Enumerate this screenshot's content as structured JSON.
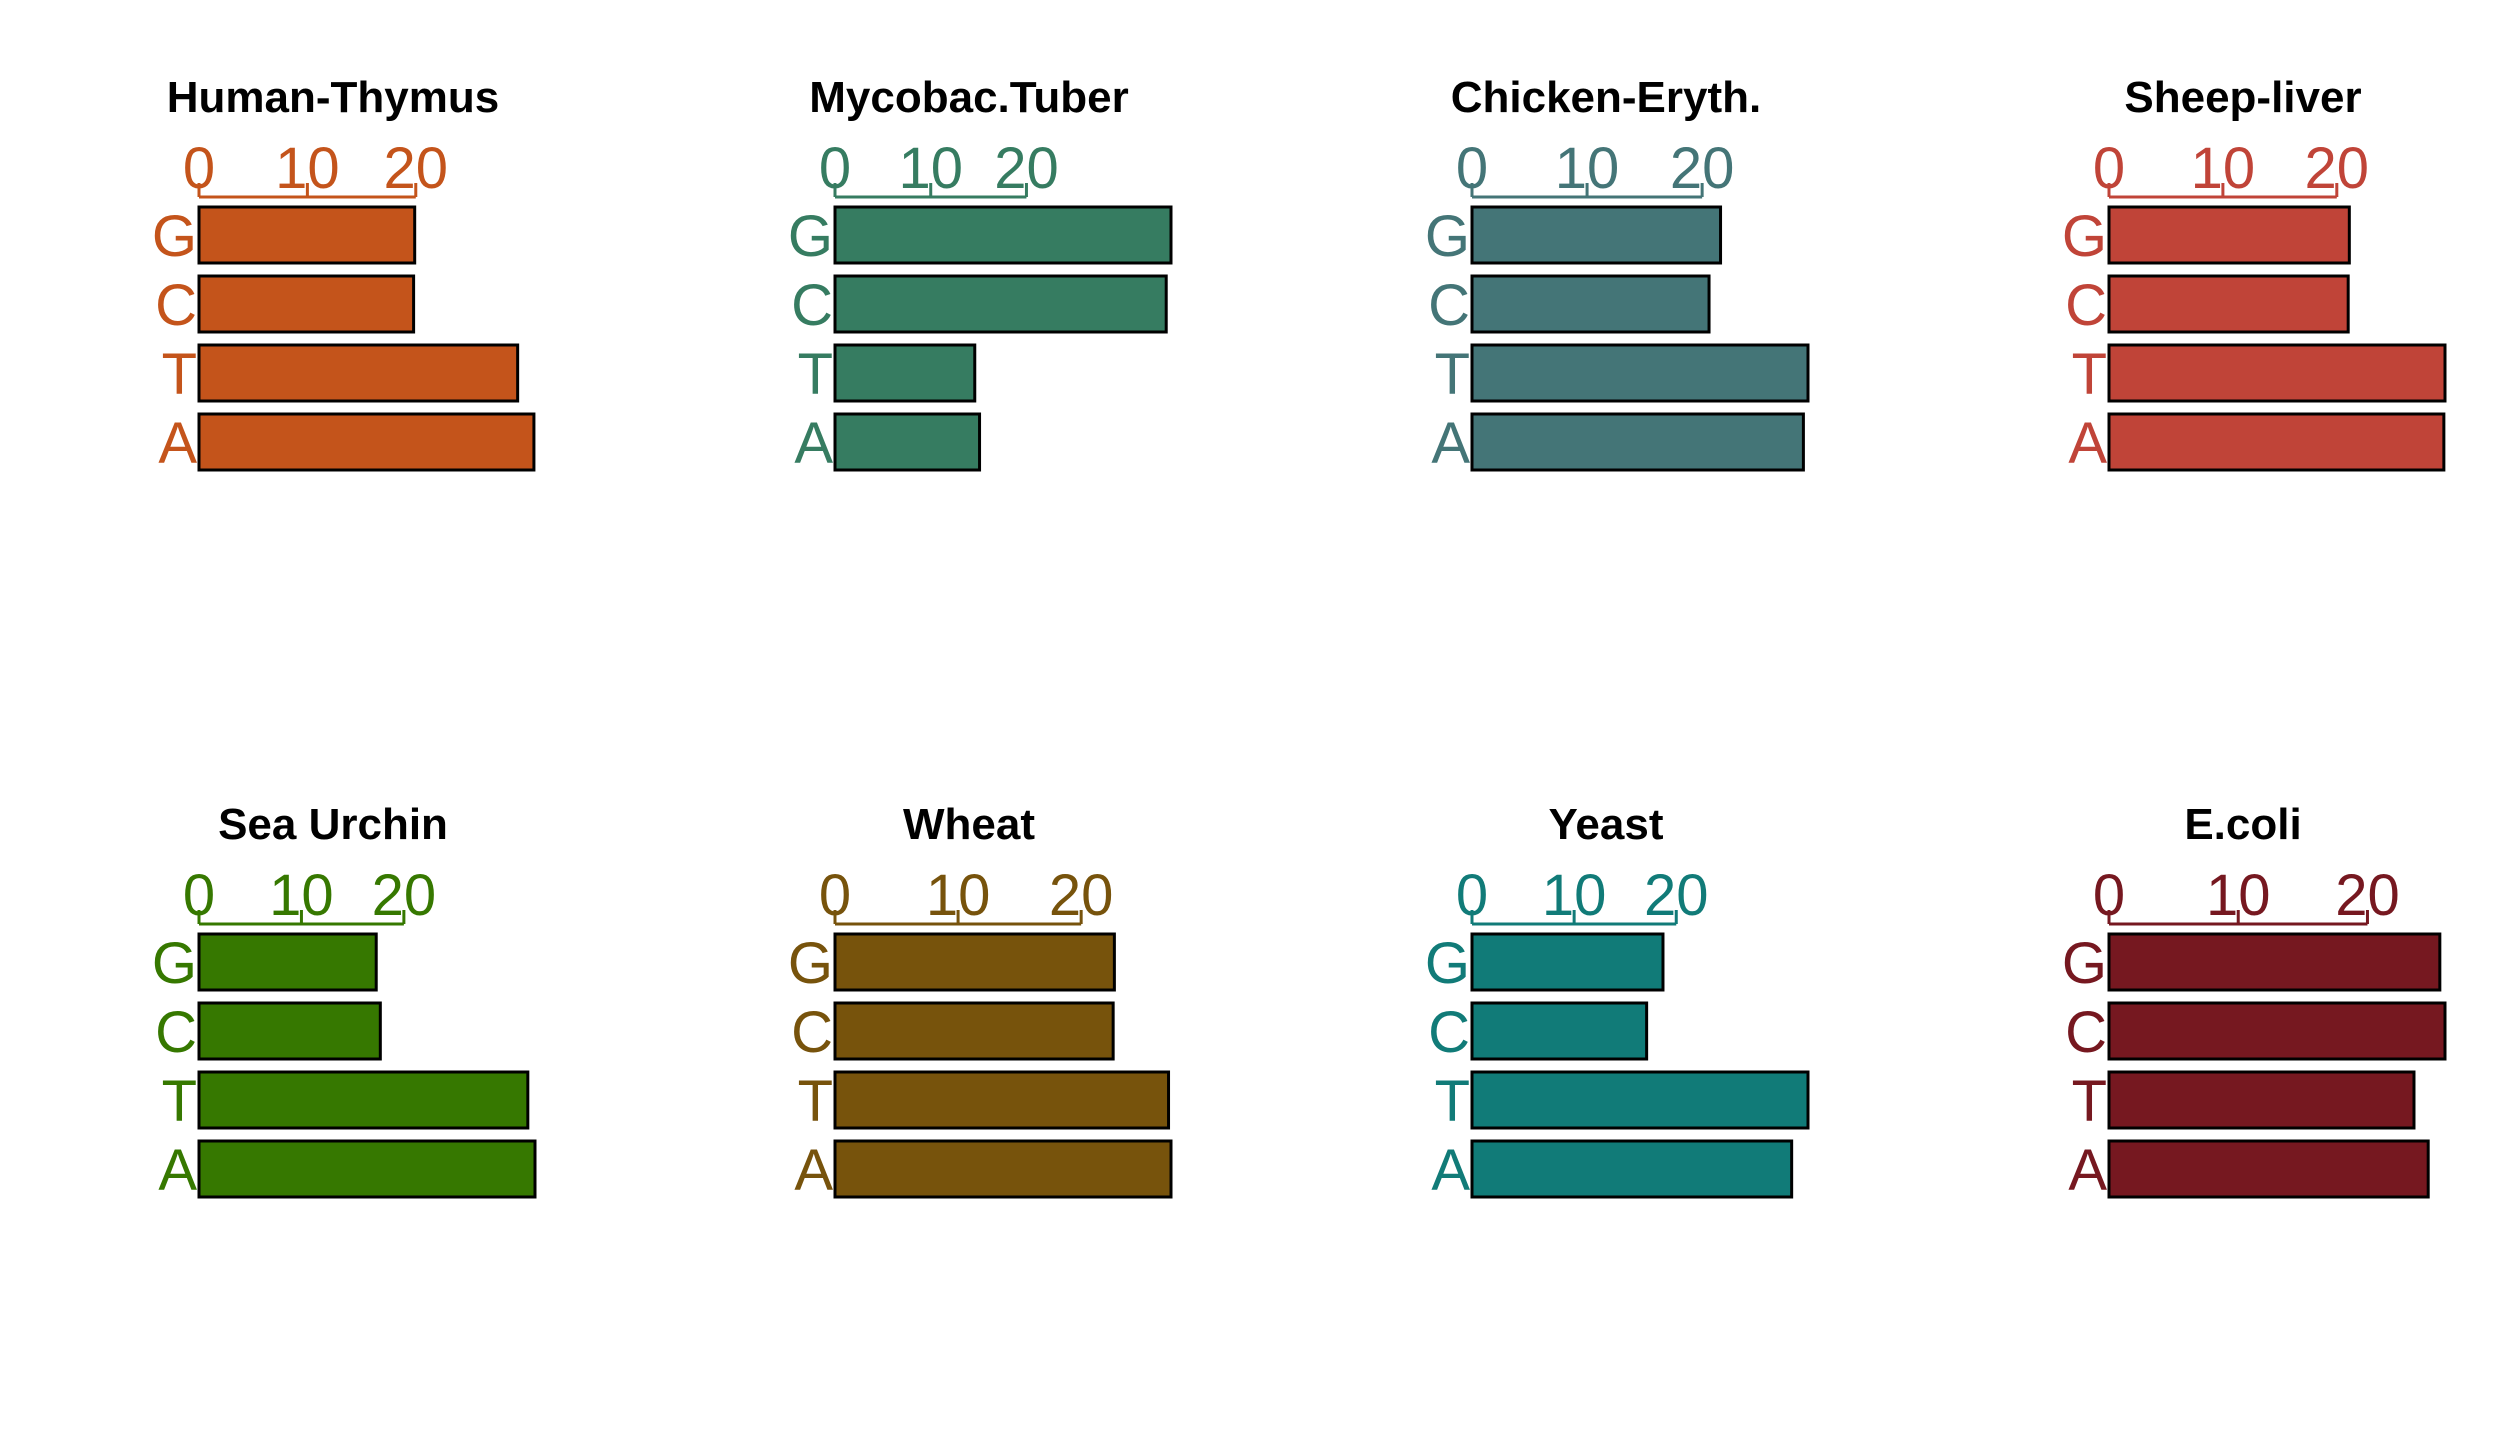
{
  "chart_data": [
    {
      "type": "bar",
      "title": "Human-Thymus",
      "color": "#C4541B",
      "categories": [
        "G",
        "C",
        "T",
        "A"
      ],
      "values": [
        19.9,
        19.8,
        29.4,
        30.9
      ],
      "xticks": [
        0,
        10,
        20
      ],
      "xlim": [
        0,
        31
      ]
    },
    {
      "type": "bar",
      "title": "Mycobac.Tuber",
      "color": "#367C61",
      "categories": [
        "G",
        "C",
        "T",
        "A"
      ],
      "values": [
        35.1,
        34.6,
        14.6,
        15.1
      ],
      "xticks": [
        0,
        10,
        20
      ],
      "xlim": [
        0,
        35.1
      ]
    },
    {
      "type": "bar",
      "title": "Chicken-Eryth.",
      "color": "#447577",
      "categories": [
        "G",
        "C",
        "T",
        "A"
      ],
      "values": [
        21.6,
        20.6,
        29.2,
        28.8
      ],
      "xticks": [
        0,
        10,
        20
      ],
      "xlim": [
        0,
        29.2
      ]
    },
    {
      "type": "bar",
      "title": "Sheep-liver",
      "color": "#C04438",
      "categories": [
        "G",
        "C",
        "T",
        "A"
      ],
      "values": [
        21.1,
        21.0,
        29.5,
        29.4
      ],
      "xticks": [
        0,
        10,
        20
      ],
      "xlim": [
        0,
        29.5
      ]
    },
    {
      "type": "bar",
      "title": "Sea Urchin",
      "color": "#367800",
      "categories": [
        "G",
        "C",
        "T",
        "A"
      ],
      "values": [
        17.3,
        17.7,
        32.1,
        32.8
      ],
      "xticks": [
        0,
        10,
        20
      ],
      "xlim": [
        0,
        32.8
      ]
    },
    {
      "type": "bar",
      "title": "Wheat",
      "color": "#77530C",
      "categories": [
        "G",
        "C",
        "T",
        "A"
      ],
      "values": [
        22.7,
        22.6,
        27.1,
        27.3
      ],
      "xticks": [
        0,
        10,
        20
      ],
      "xlim": [
        0,
        27.3
      ]
    },
    {
      "type": "bar",
      "title": "Yeast",
      "color": "#117B78",
      "categories": [
        "G",
        "C",
        "T",
        "A"
      ],
      "values": [
        18.7,
        17.1,
        32.9,
        31.3
      ],
      "xticks": [
        0,
        10,
        20
      ],
      "xlim": [
        0,
        32.9
      ]
    },
    {
      "type": "bar",
      "title": "E.coli",
      "color": "#761820",
      "categories": [
        "G",
        "C",
        "T",
        "A"
      ],
      "values": [
        25.6,
        26.0,
        23.6,
        24.7
      ],
      "xticks": [
        0,
        10,
        20
      ],
      "xlim": [
        0,
        26.0
      ]
    }
  ]
}
